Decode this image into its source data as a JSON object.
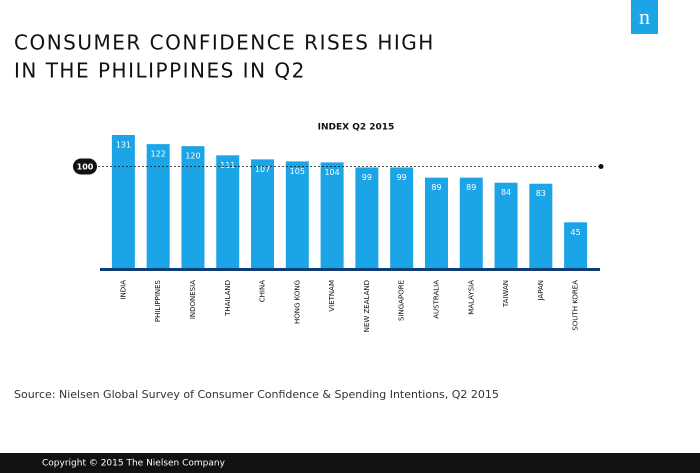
{
  "logo": "n",
  "chart_data": {
    "type": "bar",
    "title_lines": [
      "CONSUMER CONFIDENCE RISES HIGH",
      "IN THE PHILIPPINES IN Q2"
    ],
    "subtitle": "INDEX Q2 2015",
    "categories": [
      "INDIA",
      "PHILIPPINES",
      "INDONESIA",
      "THAILAND",
      "CHINA",
      "HONG KONG",
      "VIETNAM",
      "NEW ZEALAND",
      "SINGAPORE",
      "AUSTRALIA",
      "MALAYSIA",
      "TAIWAN",
      "JAPAN",
      "SOUTH KOREA"
    ],
    "values": [
      131,
      122,
      120,
      111,
      107,
      105,
      104,
      99,
      99,
      89,
      89,
      84,
      83,
      45
    ],
    "color": "#1ba4e6",
    "reference_line": 100,
    "source": "Source: Nielsen Global Survey of Consumer Confidence & Spending Intentions, Q2 2015"
  },
  "footer": "Copyright © 2015 The Nielsen Company"
}
